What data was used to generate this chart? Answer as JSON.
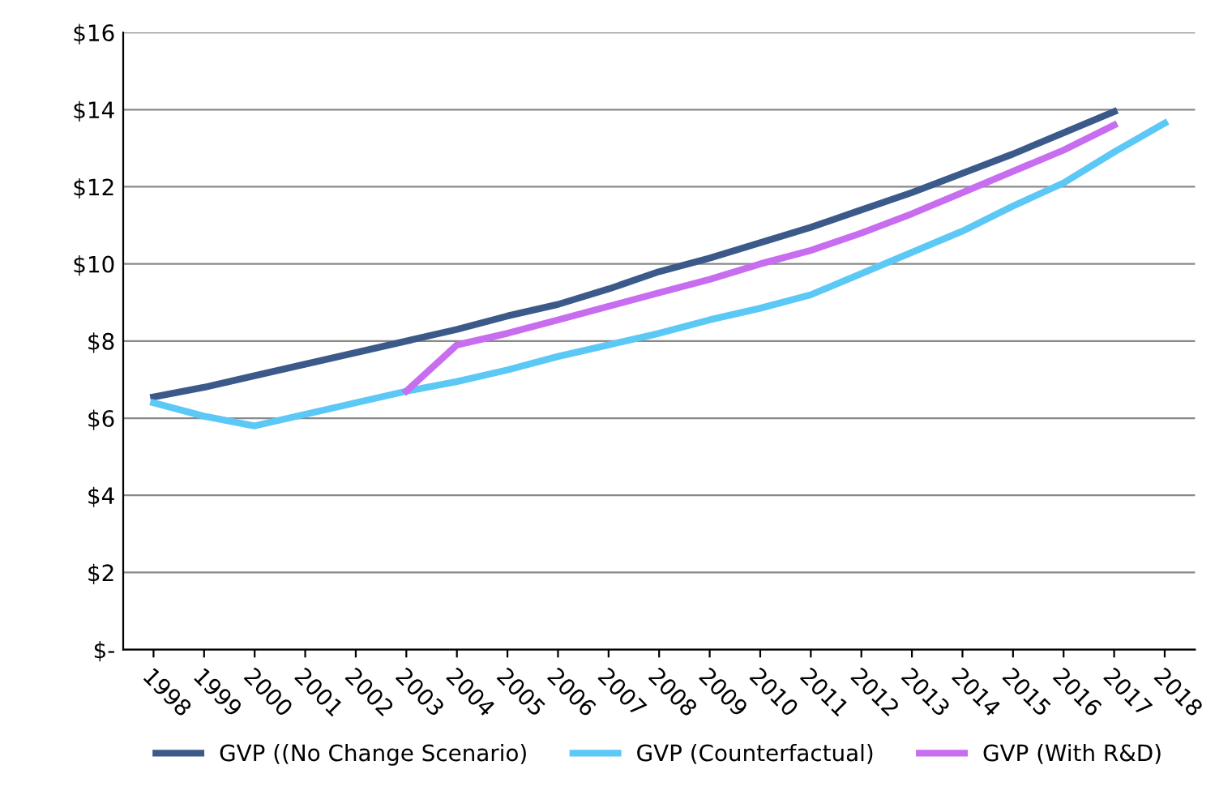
{
  "chart_data": {
    "type": "line",
    "categories": [
      "1998",
      "1999",
      "2000",
      "2001",
      "2002",
      "2003",
      "2004",
      "2005",
      "2006",
      "2007",
      "2008",
      "2009",
      "2010",
      "2011",
      "2012",
      "2013",
      "2014",
      "2015",
      "2016",
      "2017",
      "2018"
    ],
    "series": [
      {
        "name": "GVP ((No Change Scenario)",
        "color": "#3b5a8a",
        "values": [
          6.55,
          6.8,
          7.1,
          7.4,
          7.7,
          8.0,
          8.3,
          8.65,
          8.95,
          9.35,
          9.8,
          10.15,
          10.55,
          10.95,
          11.4,
          11.85,
          12.35,
          12.85,
          13.4,
          13.95,
          null
        ]
      },
      {
        "name": "GVP (Counterfactual)",
        "color": "#5bc8f5",
        "values": [
          6.4,
          6.05,
          5.8,
          6.1,
          6.4,
          6.7,
          6.95,
          7.25,
          7.6,
          7.9,
          8.2,
          8.55,
          8.85,
          9.2,
          9.75,
          10.3,
          10.85,
          11.5,
          12.1,
          12.9,
          13.65
        ]
      },
      {
        "name": "GVP (With R&D)",
        "color": "#c86cf0",
        "values": [
          null,
          null,
          null,
          null,
          null,
          6.7,
          7.9,
          8.2,
          8.55,
          8.9,
          9.25,
          9.6,
          10.0,
          10.35,
          10.8,
          11.3,
          11.85,
          12.4,
          12.95,
          13.6,
          null
        ]
      }
    ],
    "ylim": [
      0,
      16
    ],
    "yticks": [
      {
        "value": 0,
        "label": "$-"
      },
      {
        "value": 2,
        "label": "$2"
      },
      {
        "value": 4,
        "label": "$4"
      },
      {
        "value": 6,
        "label": "$6"
      },
      {
        "value": 8,
        "label": "$8"
      },
      {
        "value": 10,
        "label": "$10"
      },
      {
        "value": 12,
        "label": "$12"
      },
      {
        "value": 14,
        "label": "$14"
      },
      {
        "value": 16,
        "label": "$16"
      }
    ],
    "grid": "y",
    "legend": "bottom",
    "marker": "none",
    "line_style": "solid"
  }
}
